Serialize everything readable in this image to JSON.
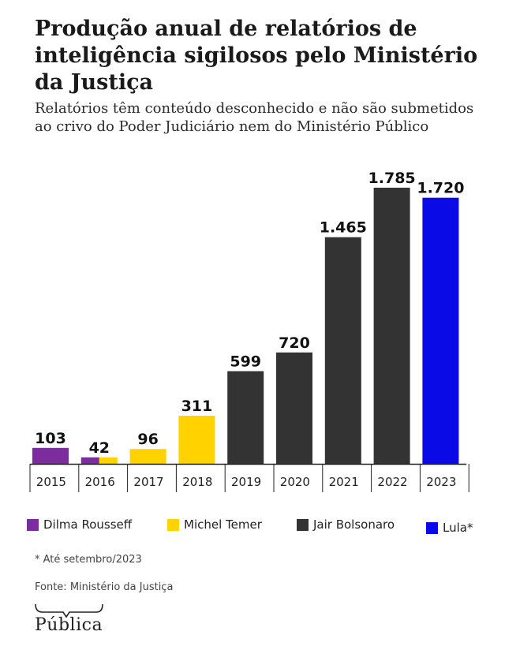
{
  "header": {
    "title": "Produção anual de relatórios de inteligência sigilosos pelo Ministério da Justiça",
    "subtitle": "Relatórios têm conteúdo desconhecido e não são submetidos ao crivo do Poder Judiciário nem do Ministério Público"
  },
  "chart_data": {
    "type": "bar",
    "categories": [
      "2015",
      "2016",
      "2017",
      "2018",
      "2019",
      "2020",
      "2021",
      "2022",
      "2023"
    ],
    "values": [
      103,
      42,
      96,
      311,
      599,
      720,
      1465,
      1785,
      1720
    ],
    "value_labels": [
      "103",
      "42",
      "96",
      "311",
      "599",
      "720",
      "1.465",
      "1.785",
      "1.720"
    ],
    "bar_colors": [
      "#7b2d9e",
      "#7b2d9e|#ffd200",
      "#ffd200",
      "#ffd200",
      "#333333",
      "#333333",
      "#333333",
      "#333333",
      "#0a0ae6"
    ],
    "ylim": [
      0,
      1800
    ],
    "grid": false,
    "legend_position": "bottom"
  },
  "legend": [
    {
      "label": "Dilma Rousseff",
      "color": "#7b2d9e"
    },
    {
      "label": "Michel Temer",
      "color": "#ffd200"
    },
    {
      "label": "Jair Bolsonaro",
      "color": "#333333"
    },
    {
      "label": "Lula*",
      "color": "#0a0ae6"
    }
  ],
  "footnote": "* Até setembro/2023",
  "source": "Fonte: Ministério da Justiça",
  "logo": "Pública"
}
